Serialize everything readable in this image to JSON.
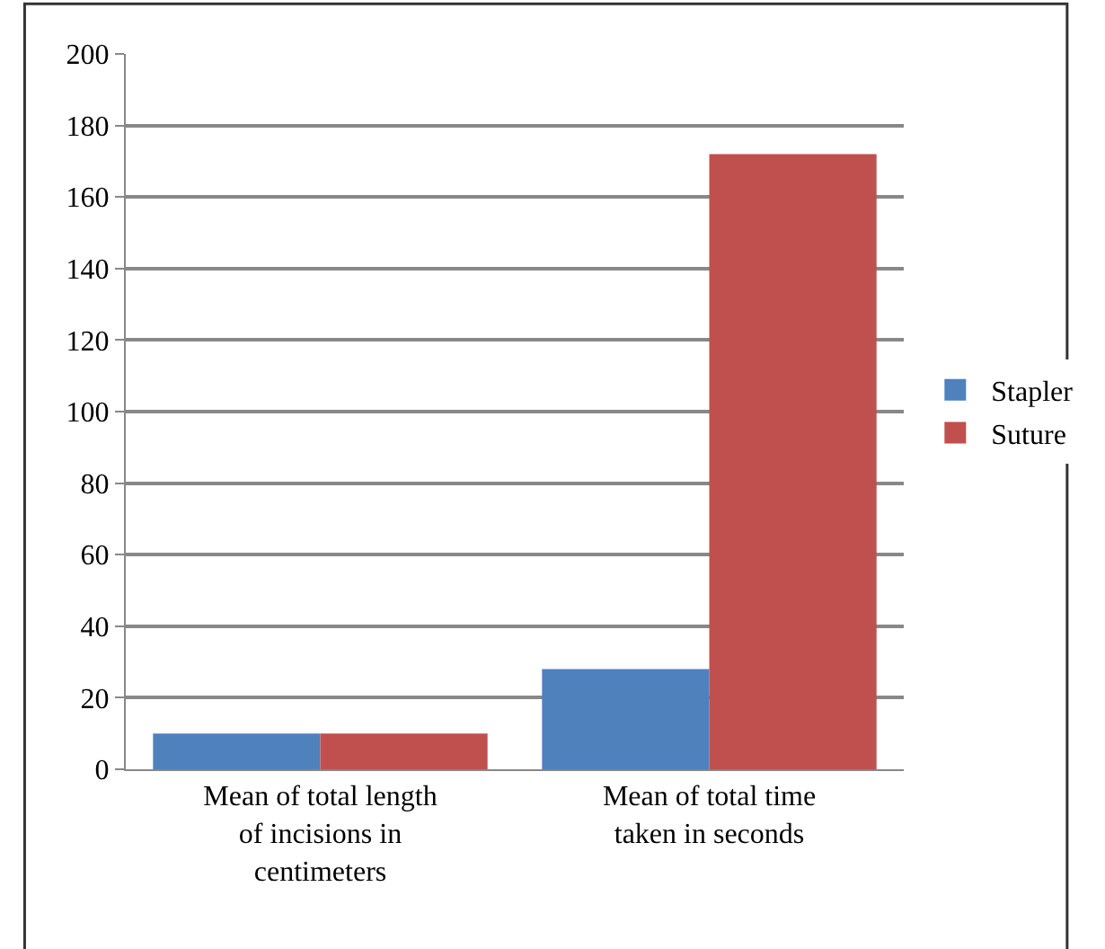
{
  "chart_data": {
    "type": "bar",
    "categories": [
      "Mean of total length of incisions in centimeters",
      "Mean of total time taken in seconds"
    ],
    "series": [
      {
        "name": "Stapler",
        "color": "#4f81bd",
        "values": [
          10,
          28
        ]
      },
      {
        "name": "Suture",
        "color": "#c0504d",
        "values": [
          10,
          172
        ]
      }
    ],
    "ylim": [
      0,
      200
    ],
    "yticks": [
      0,
      20,
      40,
      60,
      80,
      100,
      120,
      140,
      160,
      180,
      200
    ],
    "grid": "y",
    "legend": "right"
  }
}
